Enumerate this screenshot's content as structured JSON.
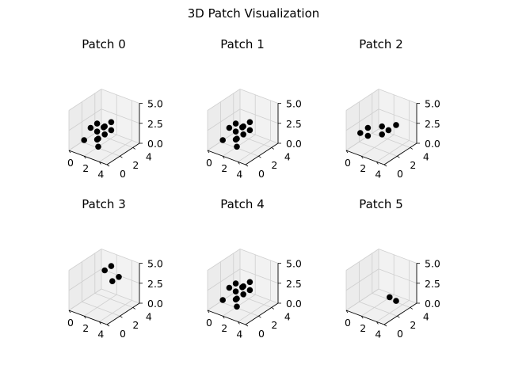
{
  "figure": {
    "title": "3D Patch Visualization"
  },
  "chart_data": [
    {
      "type": "scatter",
      "dims": 3,
      "title": "Patch 0",
      "xticks": [
        "0",
        "2",
        "4"
      ],
      "yticks": [
        "0",
        "2",
        "4"
      ],
      "zticks": [
        "0.0",
        "2.5",
        "5.0"
      ],
      "xlim": [
        0,
        5
      ],
      "ylim": [
        0,
        5
      ],
      "zlim": [
        0,
        5
      ],
      "grid": true,
      "marker_color": "#000000",
      "points": [
        [
          3,
          2,
          3
        ],
        [
          2,
          2,
          3
        ],
        [
          3,
          3,
          2
        ],
        [
          2,
          2,
          2
        ],
        [
          3,
          3,
          3
        ],
        [
          2,
          3,
          2
        ],
        [
          3,
          2,
          2
        ],
        [
          2,
          1,
          3
        ],
        [
          3,
          1,
          2
        ],
        [
          2,
          2,
          1
        ],
        [
          3,
          1,
          1
        ],
        [
          2,
          0,
          2
        ]
      ]
    },
    {
      "type": "scatter",
      "dims": 3,
      "title": "Patch 1",
      "xticks": [
        "0",
        "2",
        "4"
      ],
      "yticks": [
        "0",
        "2",
        "4"
      ],
      "zticks": [
        "0.0",
        "2.5",
        "5.0"
      ],
      "xlim": [
        0,
        5
      ],
      "ylim": [
        0,
        5
      ],
      "zlim": [
        0,
        5
      ],
      "grid": true,
      "marker_color": "#000000",
      "points": [
        [
          3,
          2,
          3
        ],
        [
          2,
          2,
          3
        ],
        [
          3,
          3,
          2
        ],
        [
          2,
          2,
          2
        ],
        [
          3,
          3,
          3
        ],
        [
          2,
          3,
          2
        ],
        [
          3,
          2,
          2
        ],
        [
          2,
          1,
          3
        ],
        [
          3,
          1,
          2
        ],
        [
          2,
          2,
          1
        ],
        [
          3,
          1,
          1
        ],
        [
          2,
          0,
          2
        ]
      ]
    },
    {
      "type": "scatter",
      "dims": 3,
      "title": "Patch 2",
      "xticks": [
        "0",
        "2",
        "4"
      ],
      "yticks": [
        "0",
        "2",
        "4"
      ],
      "zticks": [
        "0.0",
        "2.5",
        "5.0"
      ],
      "xlim": [
        0,
        5
      ],
      "ylim": [
        0,
        5
      ],
      "zlim": [
        0,
        5
      ],
      "grid": true,
      "marker_color": "#000000",
      "points": [
        [
          1,
          1,
          2
        ],
        [
          2,
          1,
          3
        ],
        [
          3,
          2,
          3
        ],
        [
          3,
          3,
          2
        ],
        [
          3,
          2,
          2
        ],
        [
          4,
          3,
          3
        ],
        [
          2,
          1,
          2
        ]
      ]
    },
    {
      "type": "scatter",
      "dims": 3,
      "title": "Patch 3",
      "xticks": [
        "0",
        "2",
        "4"
      ],
      "yticks": [
        "0",
        "2",
        "4"
      ],
      "zticks": [
        "0.0",
        "2.5",
        "5.0"
      ],
      "xlim": [
        0,
        5
      ],
      "ylim": [
        0,
        5
      ],
      "zlim": [
        0,
        5
      ],
      "grid": true,
      "marker_color": "#000000",
      "points": [
        [
          3,
          2,
          5
        ],
        [
          4,
          3,
          4
        ],
        [
          3,
          3,
          5
        ],
        [
          4,
          2,
          4
        ]
      ]
    },
    {
      "type": "scatter",
      "dims": 3,
      "title": "Patch 4",
      "xticks": [
        "0",
        "2",
        "4"
      ],
      "yticks": [
        "0",
        "2",
        "4"
      ],
      "zticks": [
        "0.0",
        "2.5",
        "5.0"
      ],
      "xlim": [
        0,
        5
      ],
      "ylim": [
        0,
        5
      ],
      "zlim": [
        0,
        5
      ],
      "grid": true,
      "marker_color": "#000000",
      "points": [
        [
          3,
          2,
          3
        ],
        [
          2,
          2,
          3
        ],
        [
          3,
          3,
          2
        ],
        [
          2,
          2,
          2
        ],
        [
          3,
          3,
          3
        ],
        [
          2,
          3,
          2
        ],
        [
          3,
          2,
          2
        ],
        [
          2,
          1,
          3
        ],
        [
          3,
          1,
          2
        ],
        [
          2,
          2,
          1
        ],
        [
          3,
          1,
          1
        ],
        [
          2,
          0,
          2
        ]
      ]
    },
    {
      "type": "scatter",
      "dims": 3,
      "title": "Patch 5",
      "xticks": [
        "0",
        "2",
        "4"
      ],
      "yticks": [
        "0",
        "2",
        "4"
      ],
      "zticks": [
        "0.0",
        "2.5",
        "5.0"
      ],
      "xlim": [
        0,
        5
      ],
      "ylim": [
        0,
        5
      ],
      "zlim": [
        0,
        5
      ],
      "grid": true,
      "marker_color": "#000000",
      "points": [
        [
          4,
          2,
          2
        ],
        [
          4,
          3,
          1
        ]
      ]
    }
  ]
}
